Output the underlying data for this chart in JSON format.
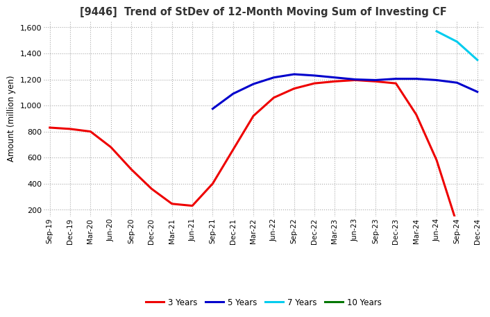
{
  "title": "[9446]  Trend of StDev of 12-Month Moving Sum of Investing CF",
  "ylabel": "Amount (million yen)",
  "ylim": [
    150,
    1650
  ],
  "yticks": [
    200,
    400,
    600,
    800,
    1000,
    1200,
    1400,
    1600
  ],
  "line_3y_color": "#ee0000",
  "line_5y_color": "#0000cc",
  "line_7y_color": "#00ccee",
  "line_10y_color": "#007700",
  "legend_labels": [
    "3 Years",
    "5 Years",
    "7 Years",
    "10 Years"
  ],
  "x_labels": [
    "Sep-19",
    "Dec-19",
    "Mar-20",
    "Jun-20",
    "Sep-20",
    "Dec-20",
    "Mar-21",
    "Jun-21",
    "Sep-21",
    "Dec-21",
    "Mar-22",
    "Jun-22",
    "Sep-22",
    "Dec-22",
    "Mar-23",
    "Jun-23",
    "Sep-23",
    "Dec-23",
    "Mar-24",
    "Jun-24",
    "Sep-24",
    "Dec-24"
  ],
  "line_3y": [
    830,
    820,
    800,
    680,
    510,
    360,
    245,
    230,
    400,
    660,
    920,
    1060,
    1130,
    1170,
    1185,
    1195,
    1185,
    1170,
    930,
    580,
    90,
    null
  ],
  "line_5y": [
    null,
    null,
    null,
    null,
    null,
    null,
    null,
    null,
    975,
    1090,
    1165,
    1215,
    1240,
    1230,
    1215,
    1200,
    1195,
    1205,
    1205,
    1195,
    1175,
    1105
  ],
  "line_7y": [
    null,
    null,
    null,
    null,
    null,
    null,
    null,
    null,
    null,
    null,
    null,
    null,
    null,
    null,
    null,
    null,
    null,
    null,
    null,
    1570,
    1490,
    1350
  ],
  "line_10y": []
}
